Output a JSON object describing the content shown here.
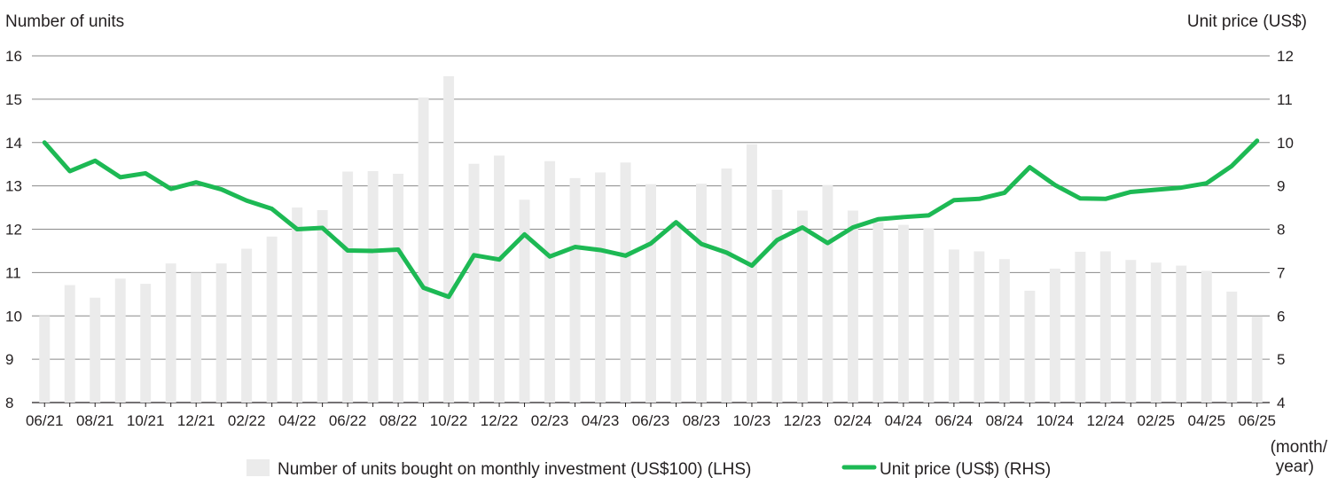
{
  "chart_data": {
    "type": "bar+line",
    "left_axis": {
      "title": "Number of units",
      "range": [
        8,
        16
      ],
      "ticks": [
        8,
        9,
        10,
        11,
        12,
        13,
        14,
        15,
        16
      ]
    },
    "right_axis": {
      "title": "Unit price (US$)",
      "range": [
        4,
        12
      ],
      "ticks": [
        4,
        5,
        6,
        7,
        8,
        9,
        10,
        11,
        12
      ]
    },
    "x_axis": {
      "unit_label": "(month/ year)",
      "tick_labels": [
        "06/21",
        "08/21",
        "10/21",
        "12/21",
        "02/22",
        "04/22",
        "06/22",
        "08/22",
        "10/22",
        "12/22",
        "02/23",
        "04/23",
        "06/23",
        "08/23",
        "10/23",
        "12/23",
        "02/24",
        "04/24",
        "06/24",
        "08/24",
        "10/24",
        "12/24",
        "02/25",
        "04/25",
        "06/25"
      ]
    },
    "grid": "horizontal",
    "legend_position": "bottom",
    "months": [
      "06/21",
      "07/21",
      "08/21",
      "09/21",
      "10/21",
      "11/21",
      "12/21",
      "01/22",
      "02/22",
      "03/22",
      "04/22",
      "05/22",
      "06/22",
      "07/22",
      "08/22",
      "09/22",
      "10/22",
      "11/22",
      "12/22",
      "01/23",
      "02/23",
      "03/23",
      "04/23",
      "05/23",
      "06/23",
      "07/23",
      "08/23",
      "09/23",
      "10/23",
      "11/23",
      "12/23",
      "01/24",
      "02/24",
      "03/24",
      "04/24",
      "05/24",
      "06/24",
      "07/24",
      "08/24",
      "09/24",
      "10/24",
      "11/24",
      "12/24",
      "01/25",
      "02/25",
      "03/25",
      "04/25",
      "05/25",
      "06/25"
    ],
    "series": [
      {
        "name": "Number of units bought on monthly investment (US$100) (LHS)",
        "type": "bar",
        "axis": "left",
        "color": "#ebebeb",
        "values": [
          10.0,
          10.71,
          10.42,
          10.86,
          10.74,
          11.21,
          11.0,
          11.21,
          11.55,
          11.83,
          12.5,
          12.44,
          13.33,
          13.34,
          13.28,
          15.04,
          15.53,
          13.51,
          13.7,
          12.68,
          13.57,
          13.18,
          13.31,
          13.54,
          13.04,
          12.18,
          13.05,
          13.4,
          13.96,
          12.91,
          12.43,
          13.02,
          12.43,
          12.16,
          12.1,
          12.02,
          11.53,
          11.49,
          11.31,
          10.58,
          11.09,
          11.48,
          11.49,
          11.29,
          11.23,
          11.16,
          11.04,
          10.56,
          9.99
        ]
      },
      {
        "name": "Unit price (US$) (RHS)",
        "type": "line",
        "axis": "right",
        "color": "#1db954",
        "values": [
          10.0,
          9.34,
          9.58,
          9.2,
          9.29,
          8.93,
          9.08,
          8.92,
          8.66,
          8.47,
          8.0,
          8.03,
          7.51,
          7.5,
          7.53,
          6.65,
          6.44,
          7.4,
          7.3,
          7.88,
          7.37,
          7.59,
          7.52,
          7.39,
          7.67,
          8.16,
          7.66,
          7.46,
          7.16,
          7.75,
          8.04,
          7.68,
          8.04,
          8.23,
          8.28,
          8.32,
          8.67,
          8.7,
          8.84,
          9.43,
          9.02,
          8.71,
          8.7,
          8.86,
          8.91,
          8.96,
          9.06,
          9.46,
          10.04
        ]
      }
    ]
  }
}
